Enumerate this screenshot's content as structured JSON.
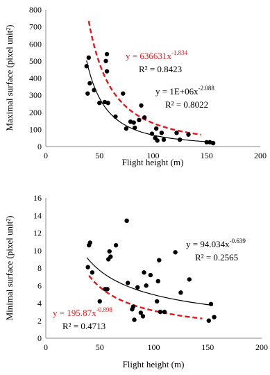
{
  "chart_data": [
    {
      "type": "scatter",
      "xlabel": "Flight height (m)",
      "ylabel": "Maximal surface (pixel unit²)",
      "xlim": [
        0,
        200
      ],
      "ylim": [
        0,
        800
      ],
      "x_ticks": [
        0,
        50,
        100,
        150,
        200
      ],
      "y_ticks": [
        0,
        100,
        200,
        300,
        400,
        500,
        600,
        700,
        800
      ],
      "grid": false,
      "series": [
        {
          "color": "#000000",
          "points": [
            [
              38,
              470
            ],
            [
              39,
              310
            ],
            [
              40,
              520
            ],
            [
              41,
              370
            ],
            [
              45,
              330
            ],
            [
              50,
              255
            ],
            [
              55,
              260
            ],
            [
              56,
              500
            ],
            [
              57,
              540
            ],
            [
              57,
              440
            ],
            [
              58,
              255
            ],
            [
              65,
              175
            ],
            [
              72,
              310
            ],
            [
              75,
              105
            ],
            [
              79,
              145
            ],
            [
              82,
              140
            ],
            [
              83,
              110
            ],
            [
              87,
              155
            ],
            [
              89,
              240
            ],
            [
              92,
              170
            ],
            [
              99,
              75
            ],
            [
              102,
              50
            ],
            [
              103,
              105
            ],
            [
              104,
              35
            ],
            [
              108,
              80
            ],
            [
              110,
              40
            ],
            [
              122,
              80
            ],
            [
              125,
              40
            ],
            [
              133,
              70
            ],
            [
              150,
              25
            ],
            [
              153,
              25
            ],
            [
              156,
              20
            ]
          ]
        }
      ],
      "fits": [
        {
          "style": "solid",
          "color": "#000000",
          "coef": 1000000,
          "exp": -2.088,
          "x_range": [
            38,
            155
          ],
          "label_base": "y = 1E+06x",
          "label_exp": "-2.088",
          "r2_label": "R² = 0.8022"
        },
        {
          "style": "dashed",
          "color": "#e8141a",
          "coef": 636631,
          "exp": -1.834,
          "x_range": [
            40,
            145
          ],
          "label_base": "y = 636631x",
          "label_exp": "-1.834",
          "r2_label": "R² = 0.8423"
        }
      ]
    },
    {
      "type": "scatter",
      "xlabel": "Flight height (m)",
      "ylabel": "Minimal surface (pixel unit²)",
      "xlim": [
        0,
        200
      ],
      "ylim": [
        0,
        16
      ],
      "x_ticks": [
        0,
        50,
        100,
        150,
        200
      ],
      "y_ticks": [
        0,
        2,
        4,
        6,
        8,
        10,
        12,
        14,
        16
      ],
      "grid": false,
      "series": [
        {
          "color": "#000000",
          "points": [
            [
              39,
              8.1
            ],
            [
              40,
              10.6
            ],
            [
              41,
              10.9
            ],
            [
              43,
              7.5
            ],
            [
              50,
              4.2
            ],
            [
              55,
              5.6
            ],
            [
              57,
              5.6
            ],
            [
              58,
              9.0
            ],
            [
              59,
              9.9
            ],
            [
              60,
              9.3
            ],
            [
              65,
              10.6
            ],
            [
              75,
              13.4
            ],
            [
              76,
              6.3
            ],
            [
              80,
              3.3
            ],
            [
              81,
              3.6
            ],
            [
              82,
              2.1
            ],
            [
              85,
              5.8
            ],
            [
              88,
              2.9
            ],
            [
              90,
              2.5
            ],
            [
              91,
              7.5
            ],
            [
              93,
              6.0
            ],
            [
              97,
              7.2
            ],
            [
              103,
              4.2
            ],
            [
              104,
              6.5
            ],
            [
              105,
              8.9
            ],
            [
              106,
              3.0
            ],
            [
              110,
              3.0
            ],
            [
              120,
              9.8
            ],
            [
              125,
              5.2
            ],
            [
              133,
              6.7
            ],
            [
              151,
              2.0
            ],
            [
              153,
              3.9
            ],
            [
              156,
              2.4
            ]
          ]
        }
      ],
      "fits": [
        {
          "style": "solid",
          "color": "#000000",
          "coef": 94.034,
          "exp": -0.639,
          "x_range": [
            38,
            155
          ],
          "label_base": "y = 94.034x",
          "label_exp": "-0.639",
          "r2_label": "R² = 0.2565"
        },
        {
          "style": "dashed",
          "color": "#e8141a",
          "coef": 195.87,
          "exp": -0.898,
          "x_range": [
            40,
            145
          ],
          "label_base": "y = 195.87x",
          "label_exp": "-0.898",
          "r2_label": "R² = 0.4713"
        }
      ]
    }
  ]
}
